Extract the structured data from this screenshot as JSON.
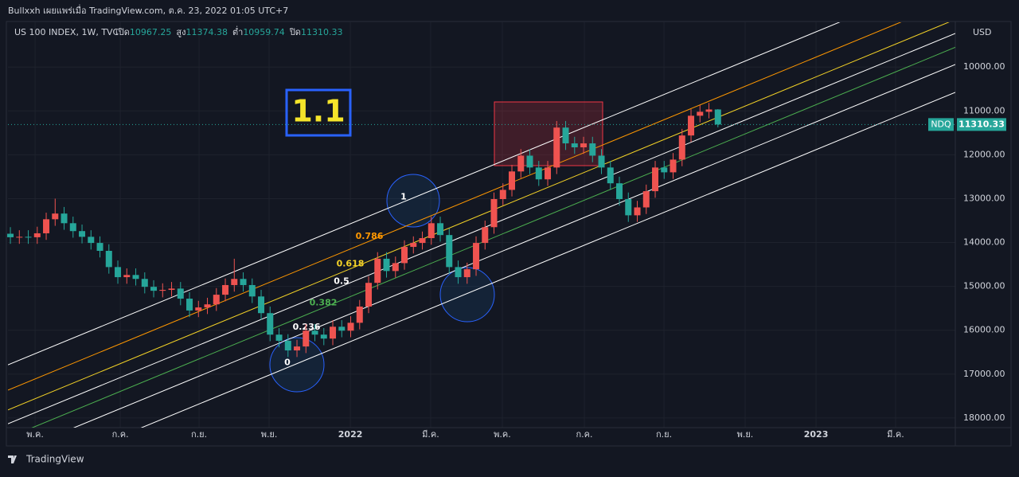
{
  "header": {
    "attribution": "Bullxxh เผยแพร่เมื่อ TradingView.com, ต.ค. 23, 2022 01:05 UTC+7"
  },
  "footer": {
    "brand": "TradingView"
  },
  "chart_data": {
    "type": "candlestick",
    "title": "US 100 INDEX, 1W, TVC",
    "ohlc_labels": [
      "เปิด",
      "สูง",
      "ต่ำ",
      "ปิด"
    ],
    "currency": "USD",
    "symbol_tag": "NDQ",
    "annotation": "1.1",
    "up_color": "#26a69a",
    "down_color": "#ef5350",
    "y_inverted": true,
    "ylim": [
      8980,
      18220
    ],
    "yticks": [
      {
        "value": 10000,
        "label": "10000.00"
      },
      {
        "value": 11000,
        "label": "11000.00"
      },
      {
        "value": 12000,
        "label": "12000.00"
      },
      {
        "value": 13000,
        "label": "13000.00"
      },
      {
        "value": 14000,
        "label": "14000.00"
      },
      {
        "value": 15000,
        "label": "15000.00"
      },
      {
        "value": 16000,
        "label": "16000.00"
      },
      {
        "value": 17000,
        "label": "17000.00"
      },
      {
        "value": 18000,
        "label": "18000.00"
      }
    ],
    "xlim": [
      -0.27,
      105.51
    ],
    "xticks": [
      {
        "value": 2.76,
        "label": "พ.ค."
      },
      {
        "value": 12.27,
        "label": "ก.ค."
      },
      {
        "value": 21.07,
        "label": "ก.ย."
      },
      {
        "value": 28.89,
        "label": "พ.ย."
      },
      {
        "value": 37.96,
        "label": "2022"
      },
      {
        "value": 46.93,
        "label": "มี.ค."
      },
      {
        "value": 54.93,
        "label": "พ.ค."
      },
      {
        "value": 64.09,
        "label": "ก.ค."
      },
      {
        "value": 72.98,
        "label": "ก.ย."
      },
      {
        "value": 82.04,
        "label": "พ.ย."
      },
      {
        "value": 89.96,
        "label": "2023"
      },
      {
        "value": 98.84,
        "label": "มี.ค."
      }
    ],
    "fib_levels": [
      0,
      0.236,
      0.382,
      0.5,
      0.618,
      0.786,
      1
    ],
    "fib_colors": [
      "#ffffff",
      "#ffffff",
      "#4caf50",
      "#ffffff",
      "#f5d327",
      "#ff9800",
      "#ffffff"
    ],
    "open": [
      13800,
      13880,
      13870,
      13880,
      13790,
      13470,
      13340,
      13560,
      13740,
      13870,
      14010,
      14190,
      14560,
      14790,
      14740,
      14830,
      15010,
      15100,
      15080,
      15050,
      15280,
      15550,
      15480,
      15410,
      15190,
      14970,
      14830,
      14970,
      15230,
      15610,
      16100,
      16240,
      16460,
      16370,
      16010,
      16100,
      16190,
      15920,
      16010,
      15830,
      15460,
      14920,
      14370,
      14650,
      14470,
      14100,
      14010,
      13900,
      13560,
      13830,
      14560,
      14790,
      14610,
      14010,
      13650,
      13010,
      12800,
      12380,
      12020,
      12290,
      12560,
      12290,
      11380,
      11740,
      11830,
      11740,
      12020,
      12290,
      12650,
      13010,
      13380,
      13200,
      12830,
      12290,
      12400,
      12110,
      11560,
      11110,
      11020,
      10967.25
    ],
    "high": [
      14030,
      14030,
      14030,
      14030,
      13940,
      13620,
      13710,
      13890,
      14020,
      14160,
      14340,
      14710,
      14940,
      14940,
      14980,
      15160,
      15250,
      15250,
      15230,
      15430,
      15700,
      15700,
      15630,
      15560,
      15340,
      15120,
      15120,
      15380,
      15760,
      16250,
      16390,
      16610,
      16610,
      16520,
      16250,
      16340,
      16340,
      16160,
      16160,
      15980,
      15610,
      15070,
      14800,
      14800,
      14620,
      14250,
      14160,
      14050,
      13980,
      14710,
      14940,
      14940,
      14760,
      14160,
      13800,
      13150,
      12950,
      12530,
      12440,
      12710,
      12710,
      12440,
      11890,
      11980,
      11980,
      12170,
      12440,
      12800,
      13160,
      13530,
      13530,
      13350,
      12980,
      12550,
      12550,
      12260,
      11710,
      11260,
      11170,
      11374.38
    ],
    "low": [
      13650,
      13720,
      13720,
      13640,
      13320,
      13000,
      13190,
      13410,
      13590,
      13720,
      13860,
      14040,
      14410,
      14590,
      14590,
      14680,
      14860,
      14930,
      14900,
      14900,
      15130,
      15330,
      15260,
      15040,
      14820,
      14370,
      14680,
      14820,
      15080,
      15460,
      15950,
      16090,
      16220,
      15860,
      15860,
      15950,
      15770,
      15770,
      15680,
      15310,
      14770,
      14220,
      14220,
      14320,
      13950,
      13860,
      13750,
      13410,
      13410,
      13680,
      14410,
      14460,
      13860,
      13500,
      12860,
      12650,
      12230,
      11870,
      11870,
      12140,
      12140,
      11230,
      11230,
      11590,
      11590,
      11590,
      11870,
      12140,
      12500,
      12860,
      13050,
      12680,
      12140,
      12140,
      11960,
      11410,
      10960,
      10870,
      10817,
      10959.74
    ],
    "close": [
      13880,
      13870,
      13880,
      13790,
      13470,
      13340,
      13560,
      13740,
      13870,
      14010,
      14190,
      14560,
      14790,
      14740,
      14830,
      15010,
      15100,
      15080,
      15050,
      15280,
      15550,
      15480,
      15410,
      15190,
      14970,
      14830,
      14970,
      15230,
      15610,
      16100,
      16240,
      16460,
      16370,
      16010,
      16100,
      16190,
      15920,
      16010,
      15830,
      15460,
      14920,
      14370,
      14650,
      14470,
      14100,
      14010,
      13900,
      13560,
      13830,
      14560,
      14790,
      14610,
      14010,
      13650,
      13010,
      12800,
      12380,
      12020,
      12290,
      12560,
      12290,
      11380,
      11740,
      11830,
      11740,
      12020,
      12290,
      12650,
      13010,
      13380,
      13200,
      12830,
      12290,
      12400,
      12110,
      11560,
      11110,
      11020,
      10967.25,
      11310.33
    ]
  }
}
